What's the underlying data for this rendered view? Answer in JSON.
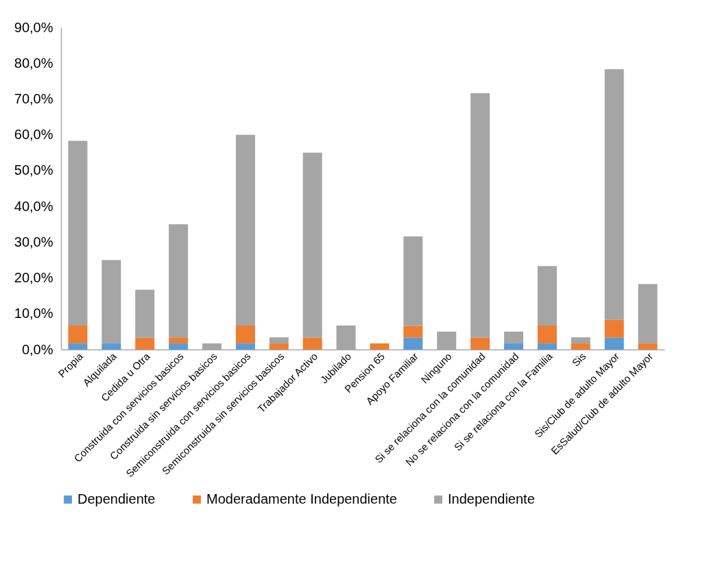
{
  "chart_data": {
    "type": "bar",
    "stacked": true,
    "legend": "bottom",
    "categories": [
      "Propia",
      "Alquilada",
      "Cedida u Otra",
      "Construida con servicios basicos",
      "Construida sin servicios basicos",
      "Semiconstruida con servicios basicos",
      "Semiconstruida sin servicios basicos",
      "Trabajador Activo",
      "Jubilado",
      "Pension 65",
      "Apoyo Familiar",
      "Ninguno",
      "Si se relaciona con la comunidad",
      "No se relaciona con la comunidad",
      "Si se relaciona con la Familia",
      "Sis",
      "Sis/Club de adulto Mayor",
      "EsSalud/Club de adulto Mayor"
    ],
    "series": [
      {
        "name": "Dependiente",
        "color": "#5b9bd5",
        "values": [
          1.7,
          1.7,
          0,
          1.7,
          0,
          1.7,
          0,
          0,
          0,
          0,
          3.3,
          0,
          0,
          1.7,
          1.7,
          0,
          3.3,
          0
        ]
      },
      {
        "name": "Moderadamente Independiente",
        "color": "#ed7d31",
        "values": [
          5.0,
          0,
          3.3,
          1.7,
          0,
          5.0,
          1.7,
          3.3,
          0,
          1.7,
          3.3,
          0,
          3.3,
          0,
          5.0,
          1.7,
          5.0,
          1.7
        ]
      },
      {
        "name": "Independiente",
        "color": "#a5a5a5",
        "values": [
          51.6,
          23.3,
          13.4,
          31.6,
          1.7,
          53.3,
          1.7,
          51.7,
          6.7,
          0,
          25.0,
          5.0,
          68.3,
          3.3,
          16.6,
          1.7,
          70.0,
          16.6
        ]
      }
    ],
    "ylim": [
      0,
      90
    ],
    "yticks": [
      {
        "value": 0,
        "label": "0,0%"
      },
      {
        "value": 10,
        "label": "10,0%"
      },
      {
        "value": 20,
        "label": "20,0%"
      },
      {
        "value": 30,
        "label": "30,0%"
      },
      {
        "value": 40,
        "label": "40,0%"
      },
      {
        "value": 50,
        "label": "50,0%"
      },
      {
        "value": 60,
        "label": "60,0%"
      },
      {
        "value": 70,
        "label": "70,0%"
      },
      {
        "value": 80,
        "label": "80,0%"
      },
      {
        "value": 90,
        "label": "90,0%"
      }
    ]
  }
}
